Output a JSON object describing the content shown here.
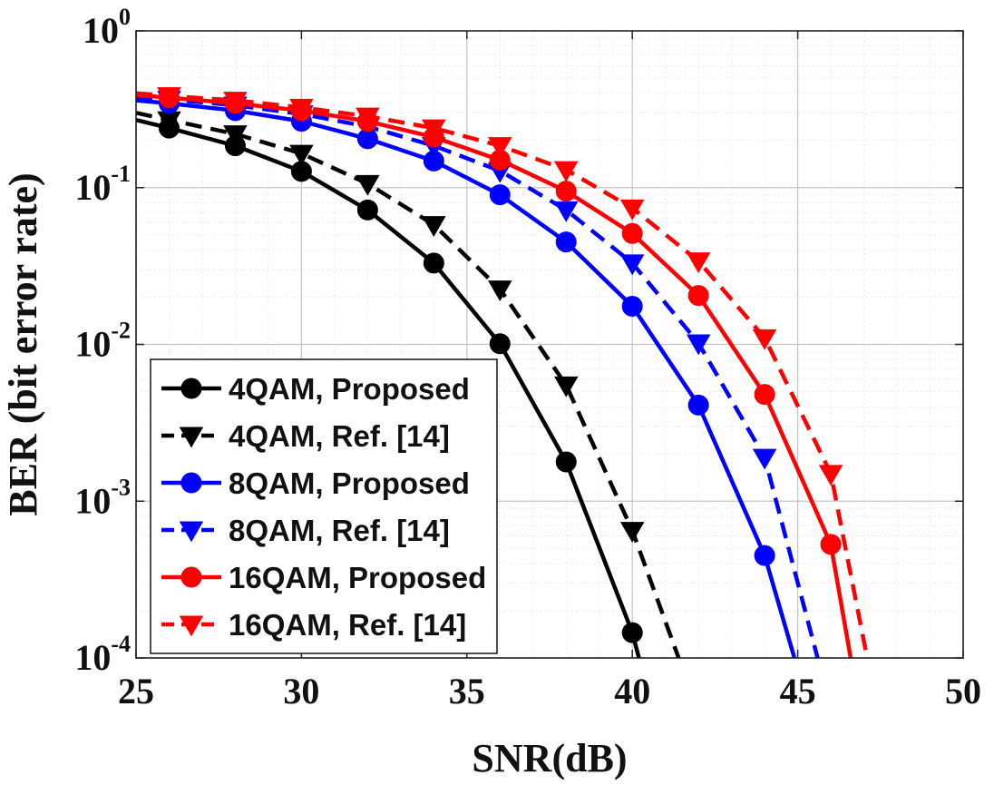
{
  "chart_data": {
    "type": "line",
    "title": "",
    "xlabel": "SNR(dB)",
    "ylabel": "BER (bit error rate)",
    "xlim": [
      25,
      50
    ],
    "ylim": [
      0.0001,
      1
    ],
    "yscale": "log",
    "grid": true,
    "minor_grid": true,
    "legend_position": "bottom-left",
    "x_ticks": [
      "25",
      "30",
      "35",
      "40",
      "45",
      "50"
    ],
    "y_ticks": [
      {
        "base": "10",
        "exp": "0"
      },
      {
        "base": "10",
        "exp": "-1"
      },
      {
        "base": "10",
        "exp": "-2"
      },
      {
        "base": "10",
        "exp": "-3"
      },
      {
        "base": "10",
        "exp": "-4"
      }
    ],
    "series": [
      {
        "name": "4QAM, Proposed",
        "color": "#000000",
        "dash": "solid",
        "marker": "circle-filled",
        "x": [
          25,
          26,
          28,
          30,
          32,
          34,
          36,
          38,
          40,
          40.2
        ],
        "y": [
          0.27,
          0.24,
          0.185,
          0.127,
          0.072,
          0.033,
          0.0101,
          0.00178,
          0.000145,
          0.0001
        ],
        "marker_x": [
          26,
          28,
          30,
          32,
          34,
          36,
          38,
          40
        ]
      },
      {
        "name": "4QAM, Ref. [14]",
        "color": "#000000",
        "dash": "dashed",
        "marker": "triangle-down-filled",
        "x": [
          25,
          26,
          28,
          30,
          32,
          34,
          36,
          38,
          40,
          41.4
        ],
        "y": [
          0.3,
          0.27,
          0.22,
          0.165,
          0.106,
          0.058,
          0.0225,
          0.0055,
          0.00065,
          0.0001
        ],
        "marker_x": [
          26,
          28,
          30,
          32,
          34,
          36,
          38,
          40
        ]
      },
      {
        "name": "8QAM, Proposed",
        "color": "#0000ff",
        "dash": "solid",
        "marker": "circle-filled",
        "x": [
          25,
          26,
          28,
          30,
          32,
          34,
          36,
          38,
          40,
          42,
          44,
          44.9
        ],
        "y": [
          0.36,
          0.345,
          0.31,
          0.265,
          0.205,
          0.148,
          0.09,
          0.045,
          0.0175,
          0.0041,
          0.00045,
          0.0001
        ],
        "marker_x": [
          26,
          28,
          30,
          32,
          34,
          36,
          38,
          40,
          42,
          44
        ]
      },
      {
        "name": "8QAM, Ref. [14]",
        "color": "#0000ff",
        "dash": "dashed",
        "marker": "triangle-down-filled",
        "x": [
          25,
          26,
          28,
          30,
          32,
          34,
          36,
          38,
          40,
          42,
          44,
          45.6
        ],
        "y": [
          0.38,
          0.365,
          0.335,
          0.295,
          0.245,
          0.185,
          0.128,
          0.072,
          0.033,
          0.0102,
          0.0019,
          0.0001
        ],
        "marker_x": [
          26,
          28,
          30,
          32,
          34,
          36,
          38,
          40,
          42,
          44
        ]
      },
      {
        "name": "16QAM, Proposed",
        "color": "#ff0000",
        "dash": "solid",
        "marker": "circle-filled",
        "x": [
          25,
          26,
          28,
          30,
          32,
          34,
          36,
          38,
          40,
          42,
          44,
          46,
          46.6
        ],
        "y": [
          0.39,
          0.375,
          0.345,
          0.31,
          0.265,
          0.21,
          0.15,
          0.095,
          0.051,
          0.0205,
          0.0048,
          0.00053,
          0.0001
        ],
        "marker_x": [
          26,
          28,
          30,
          32,
          34,
          36,
          38,
          40,
          42,
          44,
          46
        ]
      },
      {
        "name": "16QAM, Ref. [14]",
        "color": "#ff0000",
        "dash": "dashed",
        "marker": "triangle-down-filled",
        "x": [
          25,
          26,
          28,
          30,
          32,
          34,
          36,
          38,
          40,
          42,
          44,
          46,
          47.1
        ],
        "y": [
          0.4,
          0.385,
          0.36,
          0.325,
          0.285,
          0.24,
          0.185,
          0.13,
          0.074,
          0.034,
          0.011,
          0.0015,
          0.0001
        ],
        "marker_x": [
          26,
          28,
          30,
          32,
          34,
          36,
          38,
          40,
          42,
          44,
          46
        ]
      }
    ]
  }
}
